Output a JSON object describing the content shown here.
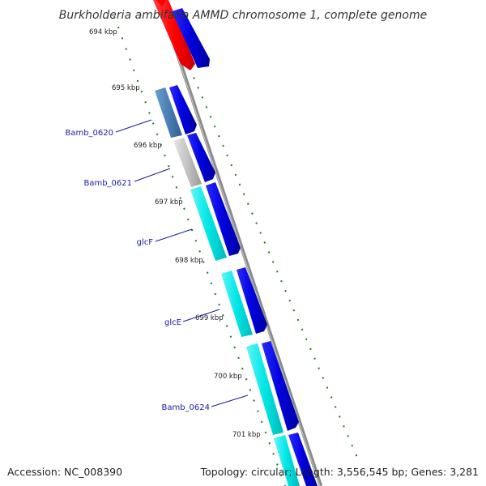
{
  "title": "Burkholderia ambifaria AMMD chromosome 1, complete genome",
  "footer": {
    "accession": "Accession: NC_008390",
    "topology": "Topology: circular; Length: 3,556,545 bp; Genes: 3,281"
  },
  "ticks": [
    {
      "label": "694 kbp",
      "pos": 694
    },
    {
      "label": "695 kbp",
      "pos": 695
    },
    {
      "label": "696 kbp",
      "pos": 696
    },
    {
      "label": "697 kbp",
      "pos": 697
    },
    {
      "label": "698 kbp",
      "pos": 698
    },
    {
      "label": "699 kbp",
      "pos": 699
    },
    {
      "label": "700 kbp",
      "pos": 700
    },
    {
      "label": "701 kbp",
      "pos": 701
    }
  ],
  "genes": [
    {
      "name": "Bamb_0620",
      "color": "#4a7fb5"
    },
    {
      "name": "Bamb_0621",
      "color": "#c2c2c2"
    },
    {
      "name": "glcF",
      "color": "#00e6e6"
    },
    {
      "name": "glcE",
      "color": "#00e6e6"
    },
    {
      "name": "Bamb_0624",
      "color": "#00e6e6"
    }
  ],
  "colors": {
    "red_feature": "#ff0000",
    "cds": "#0000dd",
    "backbone": "#888888",
    "gc_dots": "#1a7a1a",
    "gene_label": "#1a1aa6"
  }
}
